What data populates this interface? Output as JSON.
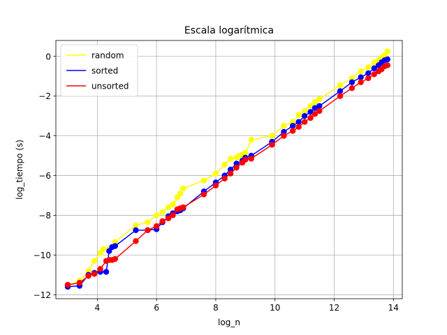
{
  "chart_data": {
    "type": "line",
    "title": "Escala logarítmica",
    "xlabel": "log_n",
    "ylabel": "log_tiempo (s)",
    "xlim": [
      2.6,
      14.3
    ],
    "ylim": [
      -12.2,
      0.8
    ],
    "xticks": [
      4,
      6,
      8,
      10,
      12,
      14
    ],
    "yticks": [
      -12,
      -10,
      -8,
      -6,
      -4,
      -2,
      0
    ],
    "xtick_labels": [
      "4",
      "6",
      "8",
      "10",
      "12",
      "14"
    ],
    "ytick_labels": [
      "−12",
      "−10",
      "−8",
      "−6",
      "−4",
      "−2",
      "0"
    ],
    "grid": true,
    "legend_position": "top-left",
    "markers": true,
    "series": [
      {
        "name": "random",
        "color": "#ffff00",
        "points": [
          [
            3.0,
            -11.5
          ],
          [
            3.4,
            -11.3
          ],
          [
            3.7,
            -10.8
          ],
          [
            3.9,
            -10.3
          ],
          [
            4.1,
            -9.9
          ],
          [
            4.2,
            -9.7
          ],
          [
            4.4,
            -9.7
          ],
          [
            4.6,
            -9.35
          ],
          [
            5.3,
            -8.5
          ],
          [
            5.7,
            -8.35
          ],
          [
            6.0,
            -8.0
          ],
          [
            6.2,
            -7.85
          ],
          [
            6.4,
            -7.6
          ],
          [
            6.55,
            -7.45
          ],
          [
            6.7,
            -7.1
          ],
          [
            6.8,
            -6.9
          ],
          [
            6.9,
            -6.65
          ],
          [
            7.6,
            -6.25
          ],
          [
            8.0,
            -5.9
          ],
          [
            8.3,
            -5.45
          ],
          [
            8.5,
            -5.15
          ],
          [
            8.7,
            -5.1
          ],
          [
            8.8,
            -5.0
          ],
          [
            8.9,
            -4.95
          ],
          [
            9.0,
            -4.85
          ],
          [
            9.2,
            -4.2
          ],
          [
            9.9,
            -4.0
          ],
          [
            10.3,
            -3.5
          ],
          [
            10.6,
            -3.3
          ],
          [
            10.8,
            -2.95
          ],
          [
            11.0,
            -2.75
          ],
          [
            11.2,
            -2.5
          ],
          [
            11.35,
            -2.3
          ],
          [
            11.5,
            -2.15
          ],
          [
            12.2,
            -1.45
          ],
          [
            12.6,
            -1.1
          ],
          [
            12.9,
            -0.75
          ],
          [
            13.15,
            -0.55
          ],
          [
            13.35,
            -0.3
          ],
          [
            13.5,
            -0.2
          ],
          [
            13.6,
            -0.05
          ],
          [
            13.7,
            0.05
          ],
          [
            13.8,
            0.25
          ]
        ]
      },
      {
        "name": "sorted",
        "color": "#0000ff",
        "points": [
          [
            3.0,
            -11.6
          ],
          [
            3.4,
            -11.55
          ],
          [
            3.7,
            -11.0
          ],
          [
            3.9,
            -10.9
          ],
          [
            4.1,
            -10.85
          ],
          [
            4.3,
            -10.85
          ],
          [
            4.4,
            -9.8
          ],
          [
            4.5,
            -9.6
          ],
          [
            4.6,
            -9.55
          ],
          [
            5.3,
            -8.75
          ],
          [
            5.7,
            -8.75
          ],
          [
            6.0,
            -8.7
          ],
          [
            6.2,
            -8.35
          ],
          [
            6.4,
            -8.05
          ],
          [
            6.55,
            -7.9
          ],
          [
            6.7,
            -7.8
          ],
          [
            6.8,
            -7.75
          ],
          [
            6.9,
            -7.65
          ],
          [
            7.6,
            -6.8
          ],
          [
            8.0,
            -6.35
          ],
          [
            8.3,
            -6.0
          ],
          [
            8.5,
            -5.7
          ],
          [
            8.7,
            -5.4
          ],
          [
            8.9,
            -5.25
          ],
          [
            9.0,
            -5.1
          ],
          [
            9.2,
            -5.0
          ],
          [
            9.9,
            -4.3
          ],
          [
            10.3,
            -3.8
          ],
          [
            10.6,
            -3.5
          ],
          [
            10.8,
            -3.3
          ],
          [
            11.0,
            -3.0
          ],
          [
            11.2,
            -2.8
          ],
          [
            11.35,
            -2.6
          ],
          [
            11.5,
            -2.5
          ],
          [
            12.2,
            -1.75
          ],
          [
            12.6,
            -1.3
          ],
          [
            12.9,
            -1.05
          ],
          [
            13.15,
            -0.85
          ],
          [
            13.35,
            -0.6
          ],
          [
            13.5,
            -0.45
          ],
          [
            13.6,
            -0.3
          ],
          [
            13.7,
            -0.2
          ],
          [
            13.8,
            -0.15
          ]
        ]
      },
      {
        "name": "unsorted",
        "color": "#ff0000",
        "points": [
          [
            3.0,
            -11.5
          ],
          [
            3.4,
            -11.4
          ],
          [
            3.7,
            -11.05
          ],
          [
            3.9,
            -10.95
          ],
          [
            4.1,
            -10.7
          ],
          [
            4.3,
            -10.3
          ],
          [
            4.4,
            -10.25
          ],
          [
            4.5,
            -10.25
          ],
          [
            4.6,
            -10.2
          ],
          [
            5.3,
            -9.3
          ],
          [
            5.7,
            -8.75
          ],
          [
            6.0,
            -8.55
          ],
          [
            6.2,
            -8.3
          ],
          [
            6.4,
            -8.15
          ],
          [
            6.55,
            -8.0
          ],
          [
            6.7,
            -7.7
          ],
          [
            6.8,
            -7.65
          ],
          [
            6.9,
            -7.6
          ],
          [
            7.6,
            -6.95
          ],
          [
            8.0,
            -6.5
          ],
          [
            8.3,
            -6.15
          ],
          [
            8.5,
            -5.9
          ],
          [
            8.7,
            -5.6
          ],
          [
            8.9,
            -5.35
          ],
          [
            9.0,
            -5.2
          ],
          [
            9.2,
            -5.15
          ],
          [
            9.9,
            -4.45
          ],
          [
            10.3,
            -4.0
          ],
          [
            10.6,
            -3.75
          ],
          [
            10.8,
            -3.55
          ],
          [
            11.0,
            -3.3
          ],
          [
            11.2,
            -3.1
          ],
          [
            11.35,
            -2.9
          ],
          [
            11.5,
            -2.75
          ],
          [
            12.2,
            -2.0
          ],
          [
            12.6,
            -1.6
          ],
          [
            12.9,
            -1.3
          ],
          [
            13.15,
            -1.1
          ],
          [
            13.35,
            -0.9
          ],
          [
            13.5,
            -0.75
          ],
          [
            13.6,
            -0.65
          ],
          [
            13.7,
            -0.5
          ],
          [
            13.8,
            -0.45
          ]
        ]
      }
    ]
  }
}
